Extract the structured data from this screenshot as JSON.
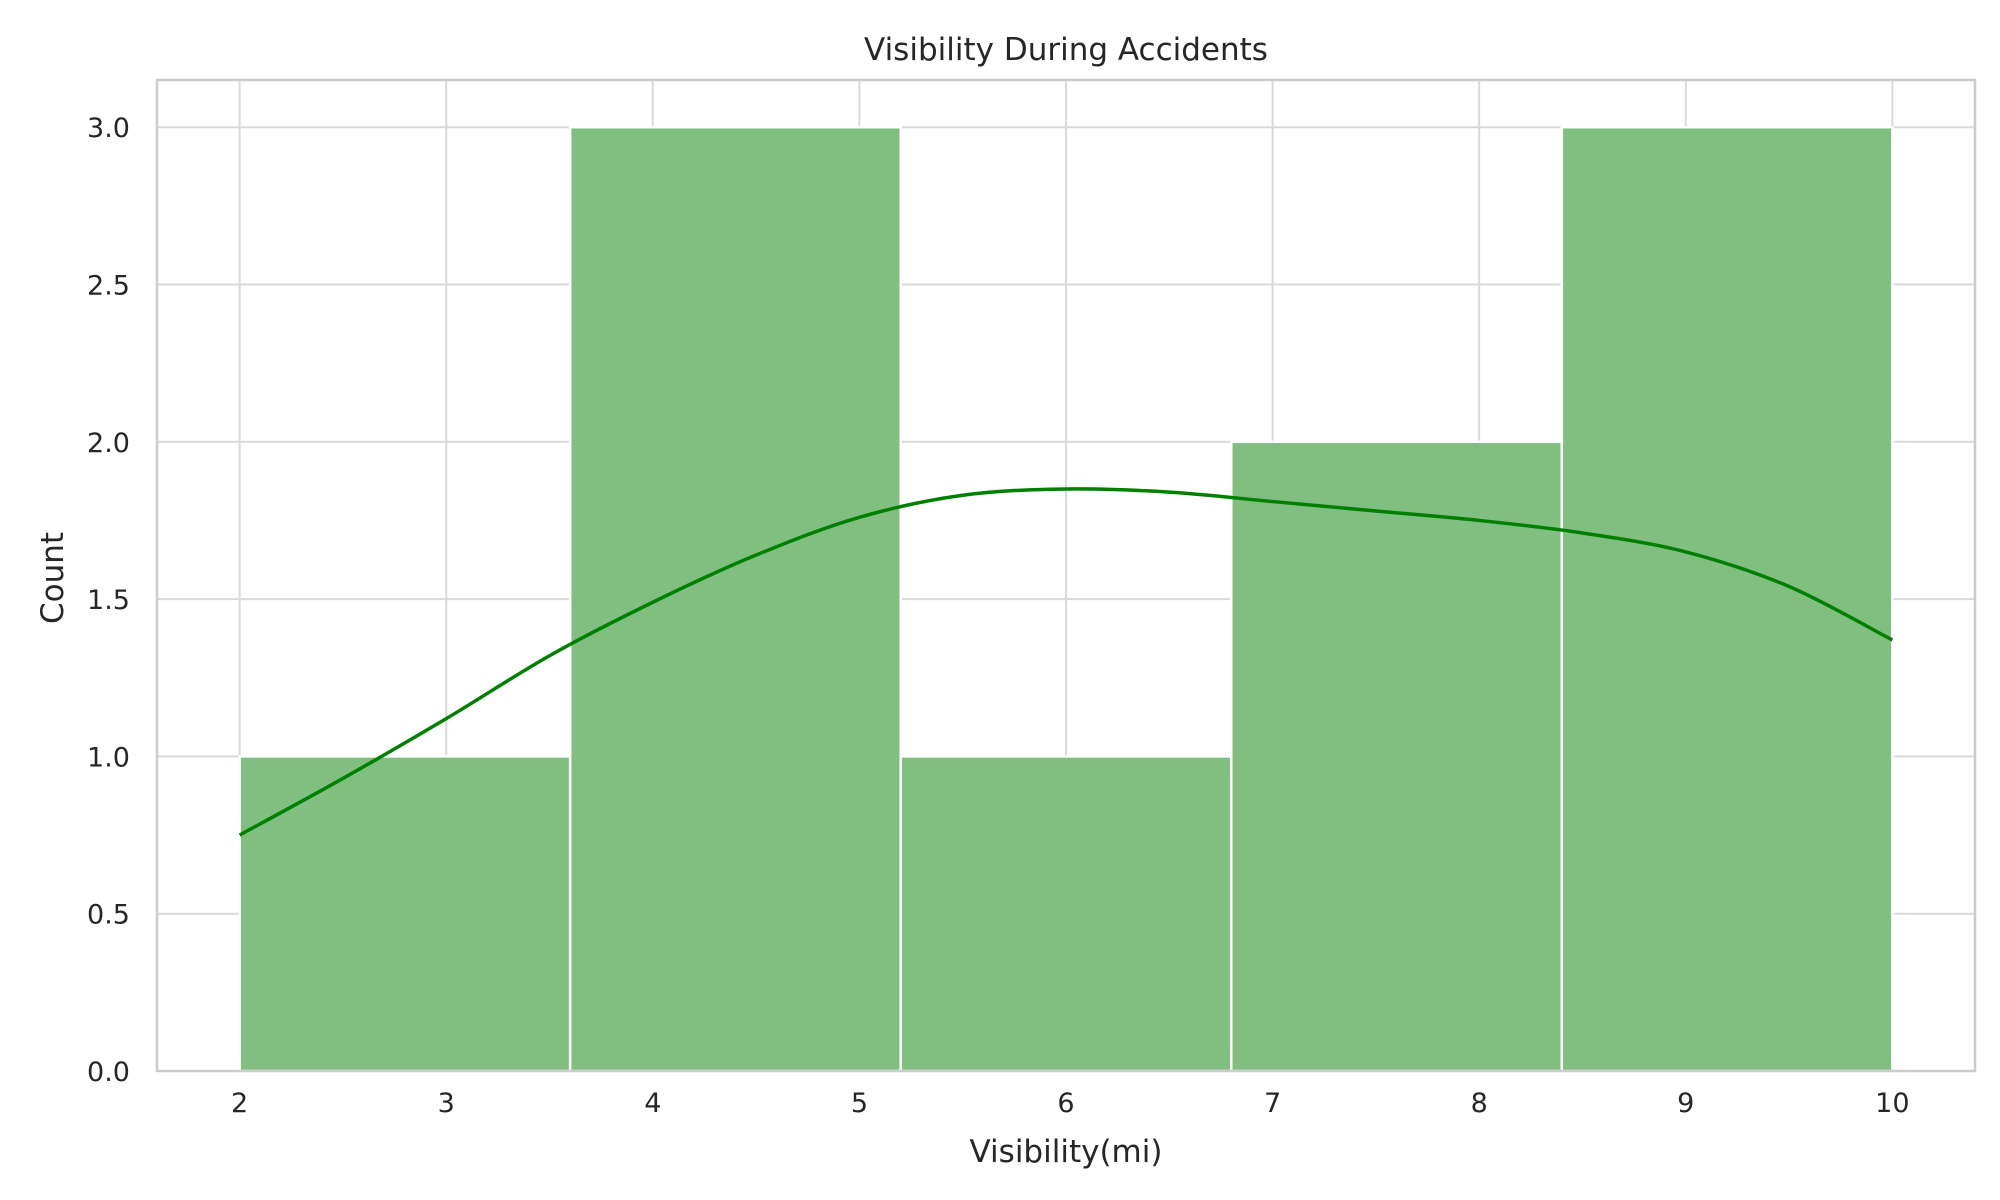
{
  "chart_data": {
    "type": "bar",
    "title": "Visibility During Accidents",
    "xlabel": "Visibility(mi)",
    "ylabel": "Count",
    "xlim": [
      1.6,
      10.4
    ],
    "ylim": [
      0,
      3.15
    ],
    "xticks": [
      2,
      3,
      4,
      5,
      6,
      7,
      8,
      9,
      10
    ],
    "yticks": [
      0.0,
      0.5,
      1.0,
      1.5,
      2.0,
      2.5,
      3.0
    ],
    "ytick_labels": [
      "0.0",
      "0.5",
      "1.0",
      "1.5",
      "2.0",
      "2.5",
      "3.0"
    ],
    "bins": [
      {
        "x0": 2.0,
        "x1": 3.6,
        "count": 1
      },
      {
        "x0": 3.6,
        "x1": 5.2,
        "count": 3
      },
      {
        "x0": 5.2,
        "x1": 6.8,
        "count": 1
      },
      {
        "x0": 6.8,
        "x1": 8.4,
        "count": 2
      },
      {
        "x0": 8.4,
        "x1": 10.0,
        "count": 3
      }
    ],
    "kde": {
      "x": [
        2.0,
        2.5,
        3.0,
        3.5,
        4.0,
        4.5,
        5.0,
        5.5,
        6.0,
        6.5,
        7.0,
        7.5,
        8.0,
        8.5,
        9.0,
        9.5,
        10.0
      ],
      "y": [
        0.75,
        0.93,
        1.12,
        1.32,
        1.49,
        1.64,
        1.76,
        1.83,
        1.85,
        1.84,
        1.81,
        1.78,
        1.75,
        1.71,
        1.65,
        1.54,
        1.37
      ]
    },
    "grid": true,
    "colors": {
      "bar_fill": "#80bf80",
      "kde_line": "#008000",
      "grid": "#d9d9d9",
      "frame": "#cccccc"
    }
  }
}
